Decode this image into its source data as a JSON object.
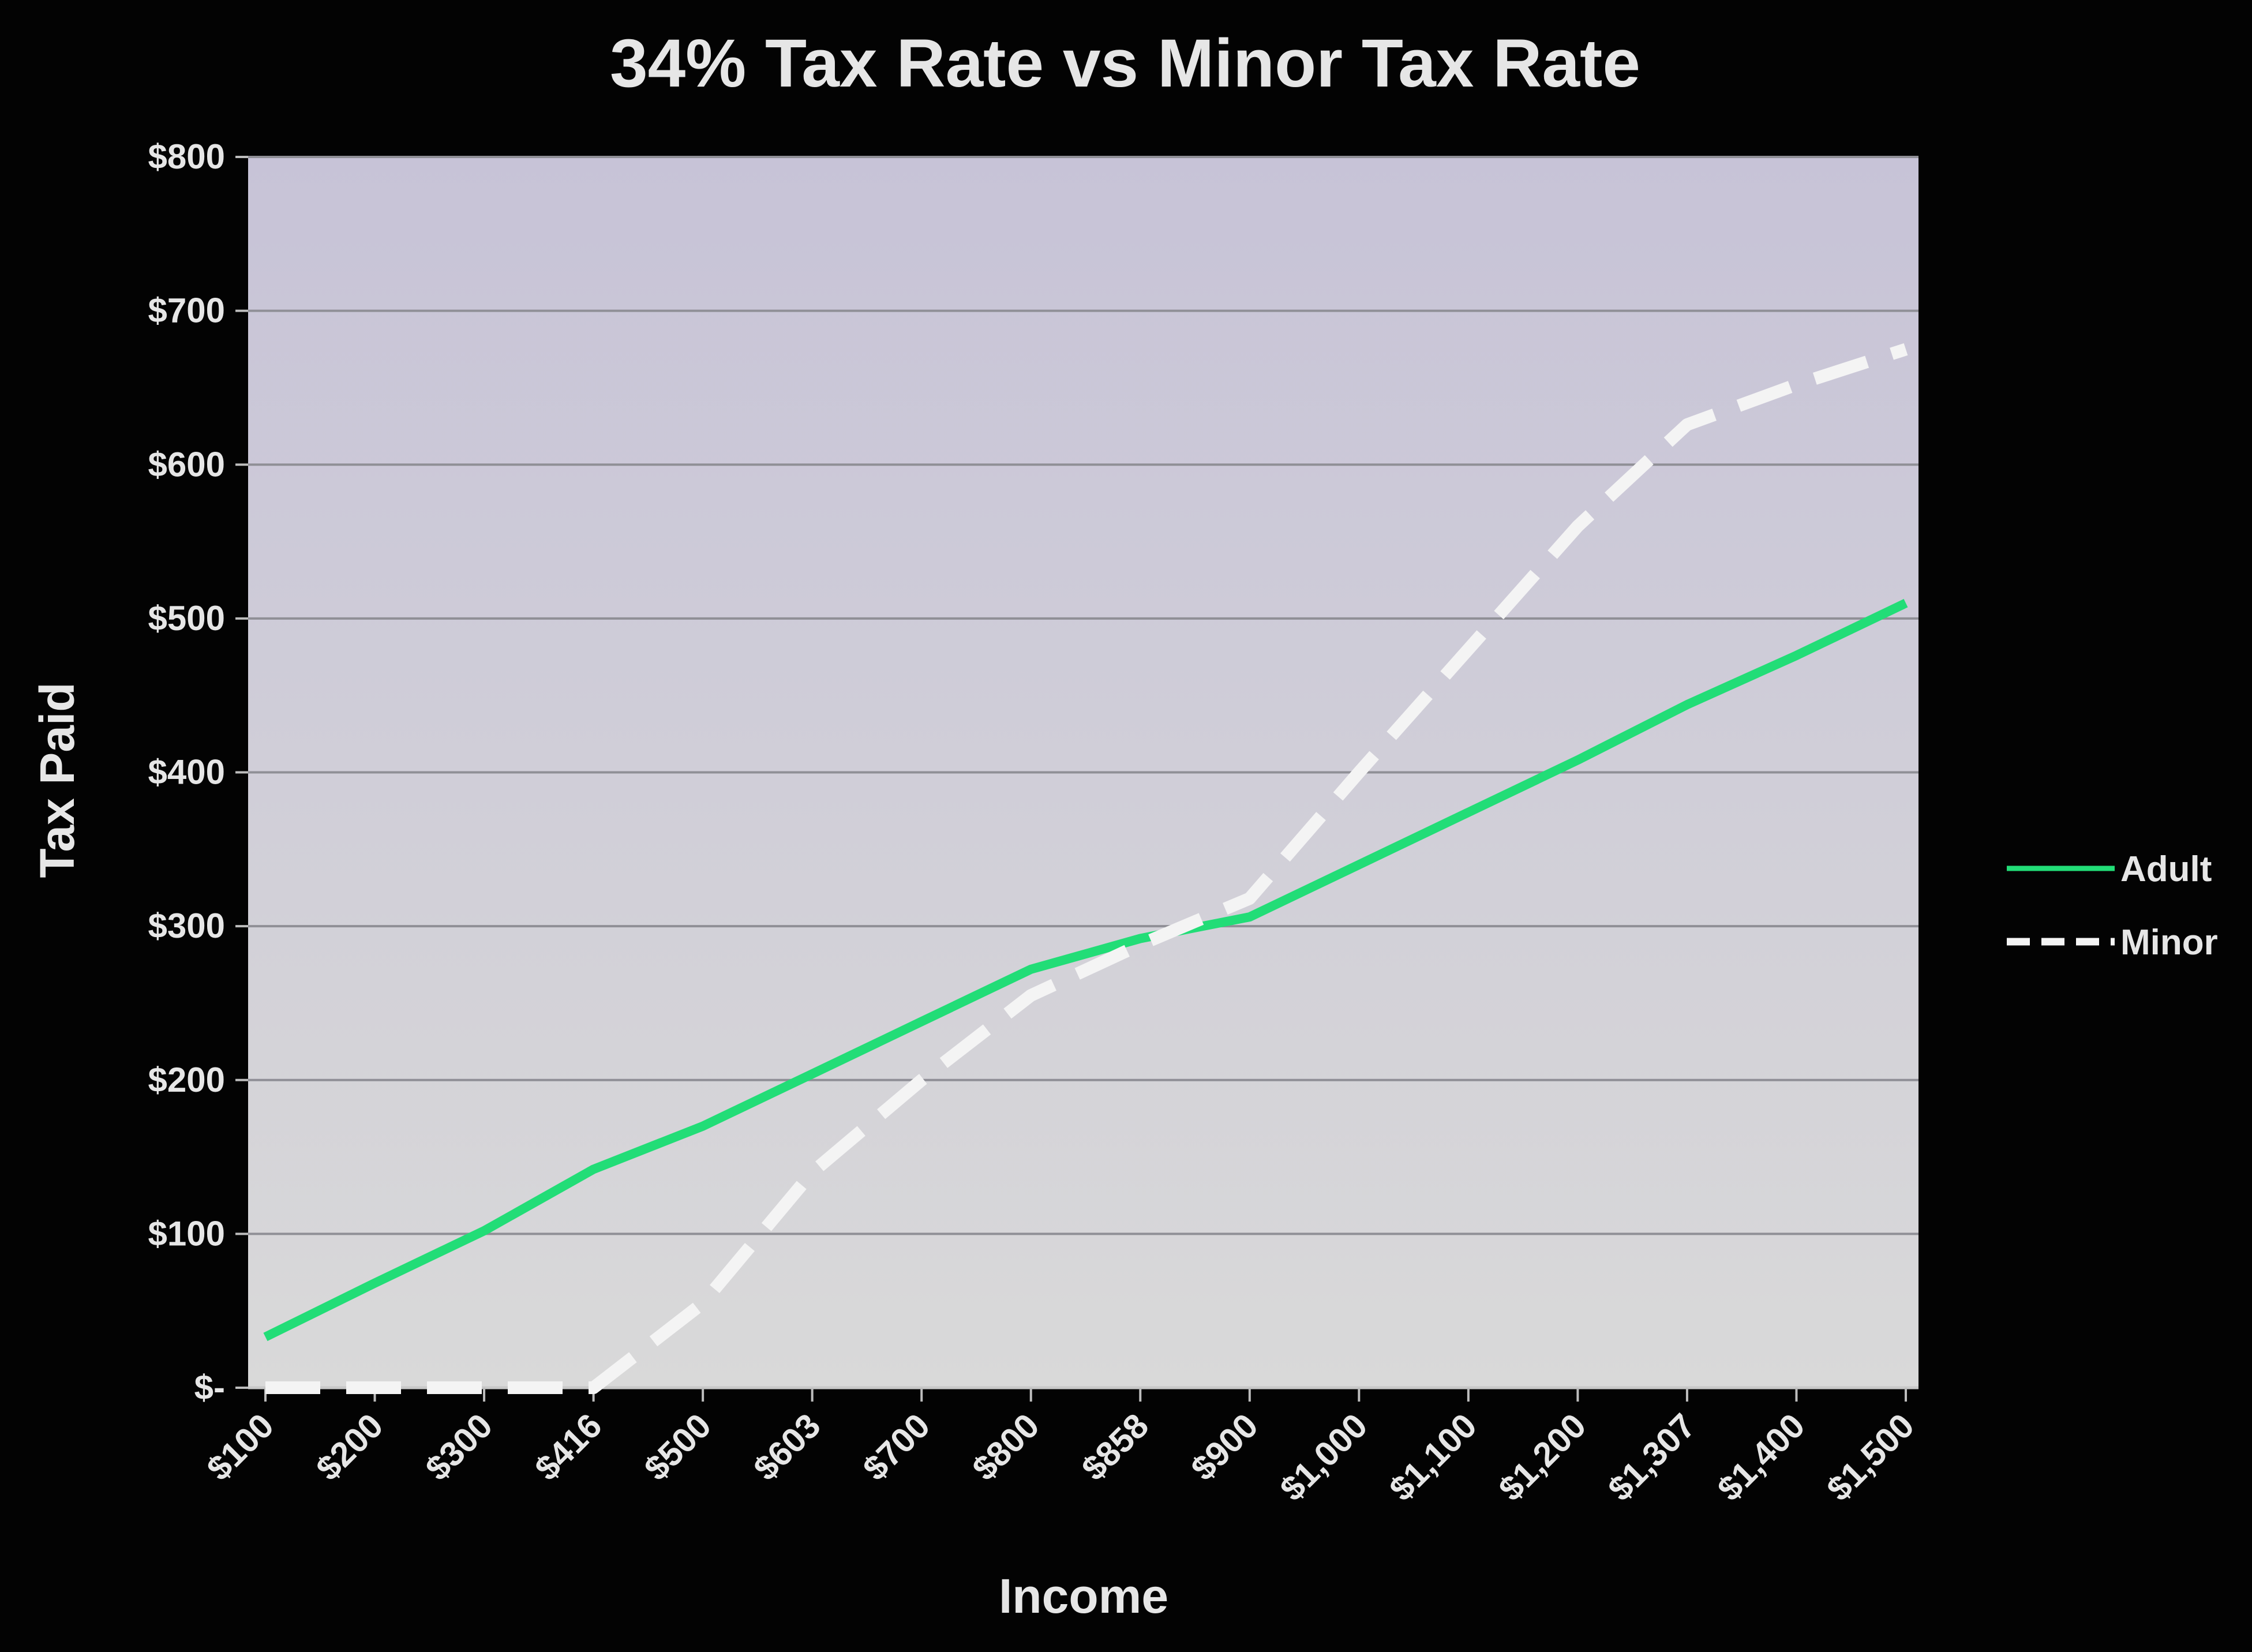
{
  "chart_data": {
    "type": "line",
    "title": "34% Tax Rate vs Minor Tax Rate",
    "xlabel": "Income",
    "ylabel": "Tax Paid",
    "categories": [
      "$100",
      "$200",
      "$300",
      "$416",
      "$500",
      "$603",
      "$700",
      "$800",
      "$858",
      "$900",
      "$1,000",
      "$1,100",
      "$1,200",
      "$1,307",
      "$1,400",
      "$1,500"
    ],
    "y_ticks": [
      "$-",
      "$100",
      "$200",
      "$300",
      "$400",
      "$500",
      "$600",
      "$700",
      "$800"
    ],
    "ylim": [
      0,
      800
    ],
    "grid": true,
    "legend_position": "right",
    "series": [
      {
        "name": "Adult",
        "color": "#22dd77",
        "style": "solid",
        "values": [
          33,
          68,
          102,
          142,
          170,
          204,
          238,
          272,
          292,
          306,
          340,
          374,
          408,
          444,
          476,
          510
        ]
      },
      {
        "name": "Minor",
        "color": "#f4f4f4",
        "style": "dashed",
        "values": [
          0,
          0,
          0,
          0,
          55,
          140,
          200,
          255,
          288,
          318,
          400,
          480,
          560,
          626,
          652,
          675
        ]
      }
    ],
    "colors": {
      "background": "#030303",
      "plot_area_top": "#c7c3d7",
      "plot_area_bottom": "#d9d9d9",
      "gridline": "#8f8f96",
      "text": "#e6e6e6"
    }
  }
}
